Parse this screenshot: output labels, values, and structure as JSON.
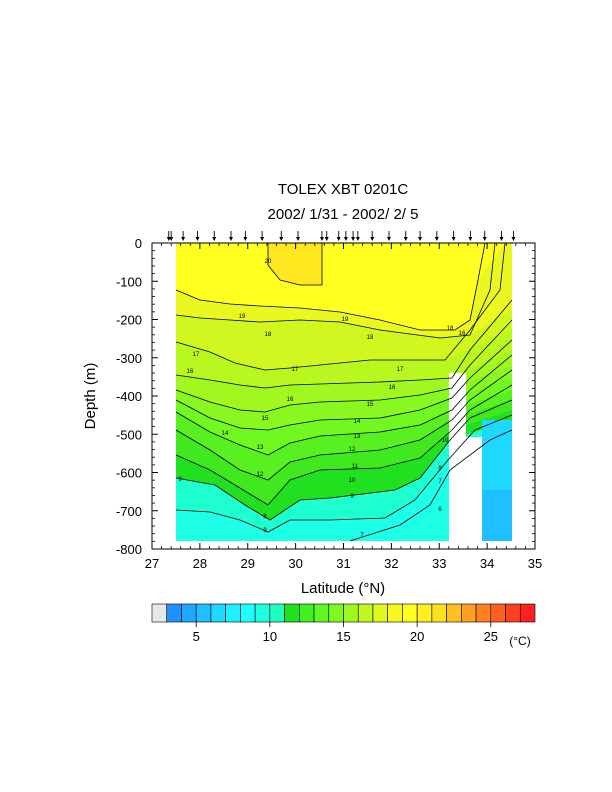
{
  "chart_data": {
    "type": "heatmap",
    "title": "TOLEX XBT 0201C",
    "subtitle": "2002/ 1/31 - 2002/ 2/ 5",
    "xlabel": "Latitude (°N)",
    "ylabel": "Depth (m)",
    "xlim": [
      27,
      35
    ],
    "ylim": [
      -800,
      0
    ],
    "x_ticks": [
      "27",
      "28",
      "29",
      "30",
      "31",
      "32",
      "33",
      "34",
      "35"
    ],
    "y_ticks": [
      "0",
      "-100",
      "-200",
      "-300",
      "-400",
      "-500",
      "-600",
      "-700",
      "-800"
    ],
    "station_latitudes": [
      27.35,
      27.4,
      27.65,
      27.95,
      28.3,
      28.65,
      28.95,
      29.3,
      29.7,
      30.05,
      30.55,
      30.65,
      30.9,
      31.05,
      31.2,
      31.3,
      31.6,
      31.95,
      32.3,
      32.6,
      32.95,
      33.3,
      33.65,
      33.95,
      34.3,
      34.55
    ],
    "contour_levels": [
      7,
      8,
      9,
      10,
      11,
      12,
      13,
      14,
      15,
      16,
      17,
      18,
      19,
      20
    ],
    "colorbar": {
      "unit": "(°C)",
      "labels": [
        "5",
        "10",
        "15",
        "20",
        "25"
      ],
      "label_values": [
        5,
        10,
        15,
        20,
        25
      ],
      "range": [
        2,
        28
      ],
      "colors": [
        "#e8e8e8",
        "#1e90ff",
        "#1ea8ff",
        "#1ec0ff",
        "#1ed8ff",
        "#1ef0ff",
        "#1effff",
        "#1effe0",
        "#1effc0",
        "#20e020",
        "#40f020",
        "#60f820",
        "#80f820",
        "#a0f820",
        "#c0f820",
        "#e0f820",
        "#f8f820",
        "#ffff20",
        "#fff020",
        "#ffe020",
        "#ffc020",
        "#ffa020",
        "#ff8020",
        "#ff6020",
        "#ff4020",
        "#ff2020"
      ]
    }
  }
}
